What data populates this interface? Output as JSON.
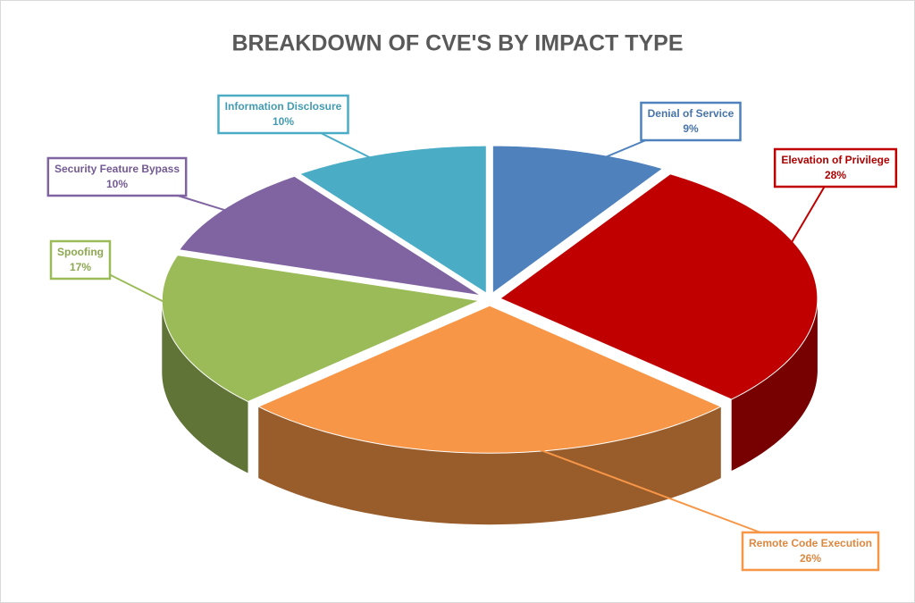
{
  "chart_data": {
    "type": "pie",
    "title": "BREAKDOWN OF CVE'S BY IMPACT TYPE",
    "categories": [
      "Denial of Service",
      "Elevation of Privilege",
      "Remote Code Execution",
      "Spoofing",
      "Security Feature Bypass",
      "Information Disclosure"
    ],
    "values": [
      9,
      28,
      26,
      17,
      10,
      10
    ],
    "value_labels": [
      "9%",
      "28%",
      "26%",
      "17%",
      "10%",
      "10%"
    ],
    "colors": [
      "#4f81bd",
      "#c00000",
      "#f79646",
      "#9bbb59",
      "#8064a2",
      "#4bacc6"
    ]
  }
}
